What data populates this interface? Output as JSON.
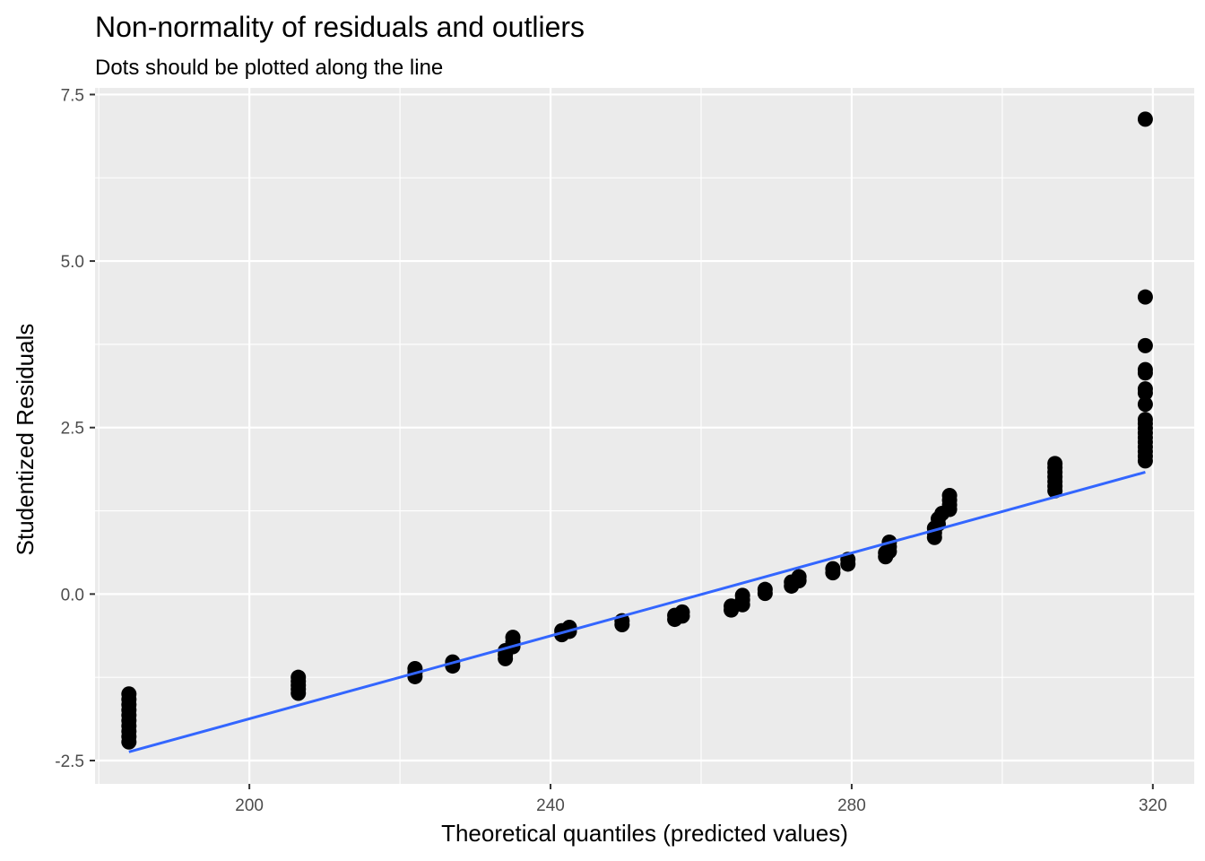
{
  "chart_data": {
    "type": "scatter",
    "title": "Non-normality of residuals and outliers",
    "subtitle": "Dots should be plotted along the line",
    "xlabel": "Theoretical quantiles (predicted values)",
    "ylabel": "Studentized Residuals",
    "xlim": [
      179.5,
      325.5
    ],
    "ylim": [
      -2.85,
      7.6
    ],
    "x_ticks": [
      200,
      240,
      280,
      320
    ],
    "x_tick_labels": [
      "200",
      "240",
      "280",
      "320"
    ],
    "y_ticks": [
      -2.5,
      0,
      2.5,
      5,
      7.5
    ],
    "y_tick_labels": [
      "-2.5",
      "0.0",
      "2.5",
      "5.0",
      "7.5"
    ],
    "grid": true,
    "panel_background": "#ebebeb",
    "grid_color": "#ffffff",
    "point_color": "#000000",
    "line_color": "#3366ff",
    "reference_line": {
      "x": [
        184,
        319
      ],
      "y": [
        -2.37,
        1.83
      ]
    },
    "points": [
      [
        184,
        -1.5
      ],
      [
        184,
        -1.58
      ],
      [
        184,
        -1.66
      ],
      [
        184,
        -1.74
      ],
      [
        184,
        -1.82
      ],
      [
        184,
        -1.9
      ],
      [
        184,
        -1.98
      ],
      [
        184,
        -2.06
      ],
      [
        184,
        -2.14
      ],
      [
        184,
        -2.22
      ],
      [
        206.5,
        -1.25
      ],
      [
        206.5,
        -1.31
      ],
      [
        206.5,
        -1.37
      ],
      [
        206.5,
        -1.43
      ],
      [
        206.5,
        -1.49
      ],
      [
        222,
        -1.12
      ],
      [
        222,
        -1.18
      ],
      [
        222,
        -1.24
      ],
      [
        227,
        -1.02
      ],
      [
        227,
        -1.08
      ],
      [
        234,
        -0.85
      ],
      [
        234,
        -0.91
      ],
      [
        234,
        -0.97
      ],
      [
        235,
        -0.65
      ],
      [
        235,
        -0.72
      ],
      [
        235,
        -0.79
      ],
      [
        241.5,
        -0.55
      ],
      [
        241.5,
        -0.61
      ],
      [
        242.5,
        -0.5
      ],
      [
        242.5,
        -0.56
      ],
      [
        249.5,
        -0.4
      ],
      [
        249.5,
        -0.46
      ],
      [
        256.5,
        -0.32
      ],
      [
        256.5,
        -0.38
      ],
      [
        257.5,
        -0.27
      ],
      [
        257.5,
        -0.33
      ],
      [
        264,
        -0.18
      ],
      [
        264,
        -0.24
      ],
      [
        265.5,
        -0.02
      ],
      [
        265.5,
        -0.09
      ],
      [
        265.5,
        -0.16
      ],
      [
        268.5,
        0.07
      ],
      [
        268.5,
        0.01
      ],
      [
        272,
        0.18
      ],
      [
        272,
        0.12
      ],
      [
        273,
        0.26
      ],
      [
        273,
        0.2
      ],
      [
        277.5,
        0.38
      ],
      [
        277.5,
        0.32
      ],
      [
        279.5,
        0.52
      ],
      [
        279.5,
        0.45
      ],
      [
        284.5,
        0.62
      ],
      [
        284.5,
        0.56
      ],
      [
        285,
        0.78
      ],
      [
        285,
        0.71
      ],
      [
        285,
        0.64
      ],
      [
        291,
        0.85
      ],
      [
        291,
        0.92
      ],
      [
        291,
        0.99
      ],
      [
        291.5,
        1.05
      ],
      [
        291.5,
        1.13
      ],
      [
        292,
        1.21
      ],
      [
        293,
        1.27
      ],
      [
        293,
        1.34
      ],
      [
        293,
        1.41
      ],
      [
        293,
        1.48
      ],
      [
        307,
        1.55
      ],
      [
        307,
        1.62
      ],
      [
        307,
        1.69
      ],
      [
        307,
        1.76
      ],
      [
        307,
        1.83
      ],
      [
        307,
        1.9
      ],
      [
        307,
        1.96
      ],
      [
        319,
        2.0
      ],
      [
        319,
        2.07
      ],
      [
        319,
        2.14
      ],
      [
        319,
        2.21
      ],
      [
        319,
        2.28
      ],
      [
        319,
        2.35
      ],
      [
        319,
        2.42
      ],
      [
        319,
        2.49
      ],
      [
        319,
        2.56
      ],
      [
        319,
        2.62
      ],
      [
        319,
        2.85
      ],
      [
        319,
        3.02
      ],
      [
        319,
        3.08
      ],
      [
        319,
        3.32
      ],
      [
        319,
        3.37
      ],
      [
        319,
        3.73
      ],
      [
        319,
        4.46
      ],
      [
        319,
        7.13
      ]
    ]
  }
}
